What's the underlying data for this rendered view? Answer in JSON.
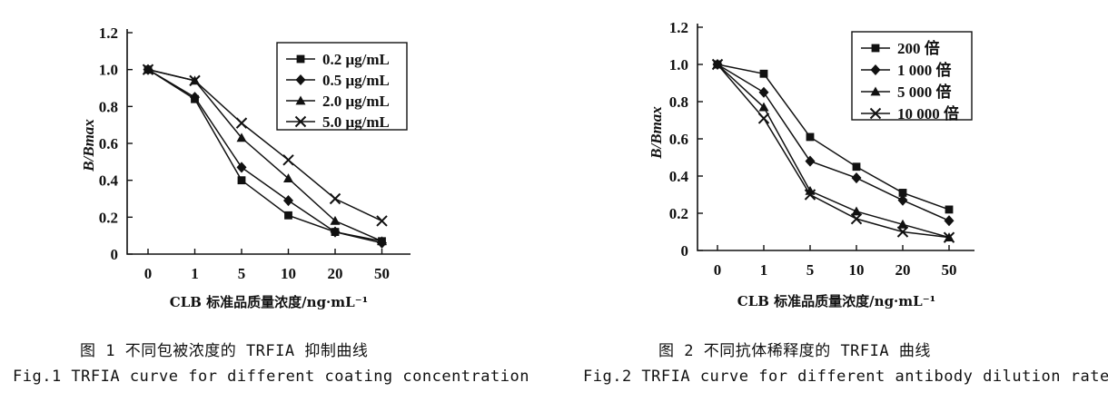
{
  "figures": [
    {
      "caption_cn": "图 1  不同包被浓度的 TRFIA 抑制曲线",
      "caption_en": "Fig.1  TRFIA curve for different coating concentration"
    },
    {
      "caption_cn": "图 2  不同抗体稀释度的 TRFIA 曲线",
      "caption_en": "Fig.2  TRFIA curve for different antibody dilution rate"
    }
  ],
  "chart_data": [
    {
      "type": "line",
      "title": "",
      "xlabel": "CLB 标准品质量浓度/ng·mL⁻¹",
      "ylabel": "B/Bmax",
      "categories": [
        "0",
        "1",
        "5",
        "10",
        "20",
        "50"
      ],
      "y_ticks": [
        "0",
        "0.2",
        "0.4",
        "0.6",
        "0.8",
        "1.0",
        "1.2"
      ],
      "ylim": [
        0,
        1.2
      ],
      "grid": false,
      "legend_position": "top-right",
      "series": [
        {
          "name": "0.2 μg/mL",
          "marker": "square",
          "values": [
            1.0,
            0.84,
            0.4,
            0.21,
            0.12,
            0.07
          ]
        },
        {
          "name": "0.5 μg/mL",
          "marker": "diamond",
          "values": [
            1.0,
            0.85,
            0.47,
            0.29,
            0.12,
            0.06
          ]
        },
        {
          "name": "2.0 μg/mL",
          "marker": "triangle",
          "values": [
            1.0,
            0.94,
            0.63,
            0.41,
            0.18,
            0.07
          ]
        },
        {
          "name": "5.0 μg/mL",
          "marker": "cross",
          "values": [
            1.0,
            0.94,
            0.71,
            0.51,
            0.3,
            0.18
          ]
        }
      ]
    },
    {
      "type": "line",
      "title": "",
      "xlabel": "CLB 标准品质量浓度/ng·mL⁻¹",
      "ylabel": "B/Bmax",
      "categories": [
        "0",
        "1",
        "5",
        "10",
        "20",
        "50"
      ],
      "y_ticks": [
        "0",
        "0.2",
        "0.4",
        "0.6",
        "0.8",
        "1.0",
        "1.2"
      ],
      "ylim": [
        0,
        1.2
      ],
      "grid": false,
      "legend_position": "top-right",
      "series": [
        {
          "name": "200 倍",
          "marker": "square",
          "values": [
            1.0,
            0.95,
            0.61,
            0.45,
            0.31,
            0.22
          ]
        },
        {
          "name": "1 000 倍",
          "marker": "diamond",
          "values": [
            1.0,
            0.85,
            0.48,
            0.39,
            0.27,
            0.16
          ]
        },
        {
          "name": "5 000 倍",
          "marker": "triangle",
          "values": [
            1.0,
            0.77,
            0.32,
            0.21,
            0.14,
            0.07
          ]
        },
        {
          "name": "10 000 倍",
          "marker": "cross",
          "values": [
            1.0,
            0.71,
            0.3,
            0.17,
            0.1,
            0.07
          ]
        }
      ]
    }
  ]
}
